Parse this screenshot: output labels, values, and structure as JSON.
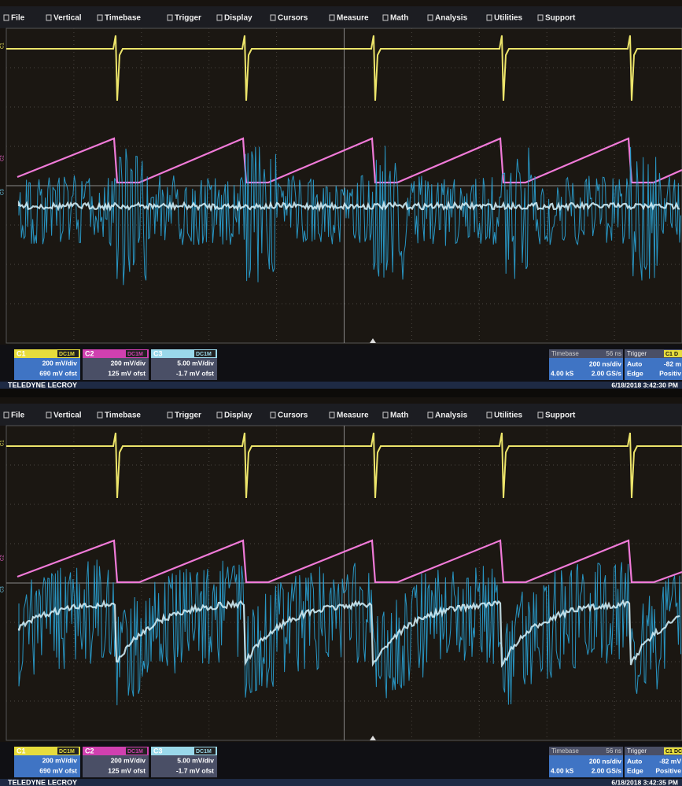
{
  "screens": [
    {
      "menu": [
        "File",
        "Vertical",
        "Timebase",
        "Trigger",
        "Display",
        "Cursors",
        "Measure",
        "Math",
        "Analysis",
        "Utilities",
        "Support"
      ],
      "channels": [
        {
          "name": "C1",
          "coupling": "DC1M",
          "scale": "200 mV/div",
          "offset": "690 mV ofst"
        },
        {
          "name": "C2",
          "coupling": "DC1M",
          "scale": "200 mV/div",
          "offset": "125 mV ofst"
        },
        {
          "name": "C3",
          "coupling": "DC1M",
          "scale": "5.00 mV/div",
          "offset": "-1.7 mV ofst"
        }
      ],
      "timebase": {
        "label": "Timebase",
        "delay": "56 ns",
        "scale": "200 ns/div",
        "samples": "4.00 kS",
        "rate": "2.00 GS/s"
      },
      "trigger": {
        "label": "Trigger",
        "channel": "C1",
        "coupling": "D",
        "mode": "Auto",
        "level": "-82 m",
        "type": "Edge",
        "slope": "Positiv"
      },
      "brand": "TELEDYNE LECROY",
      "timestamp": "6/18/2018 3:42:30 PM"
    },
    {
      "menu": [
        "File",
        "Vertical",
        "Timebase",
        "Trigger",
        "Display",
        "Cursors",
        "Measure",
        "Math",
        "Analysis",
        "Utilities",
        "Support"
      ],
      "channels": [
        {
          "name": "C1",
          "coupling": "DC1M",
          "scale": "200 mV/div",
          "offset": "690 mV ofst"
        },
        {
          "name": "C2",
          "coupling": "DC1M",
          "scale": "200 mV/div",
          "offset": "125 mV ofst"
        },
        {
          "name": "C3",
          "coupling": "DC1M",
          "scale": "5.00 mV/div",
          "offset": "-1.7 mV ofst"
        }
      ],
      "timebase": {
        "label": "Timebase",
        "delay": "56 ns",
        "scale": "200 ns/div",
        "samples": "4.00 kS",
        "rate": "2.00 GS/s"
      },
      "trigger": {
        "label": "Trigger",
        "channel": "C1",
        "coupling": "DC",
        "mode": "Auto",
        "level": "-82 mV",
        "type": "Edge",
        "slope": "Positive"
      },
      "brand": "TELEDYNE LECROY",
      "timestamp": "6/18/2018 3:42:35 PM"
    }
  ]
}
